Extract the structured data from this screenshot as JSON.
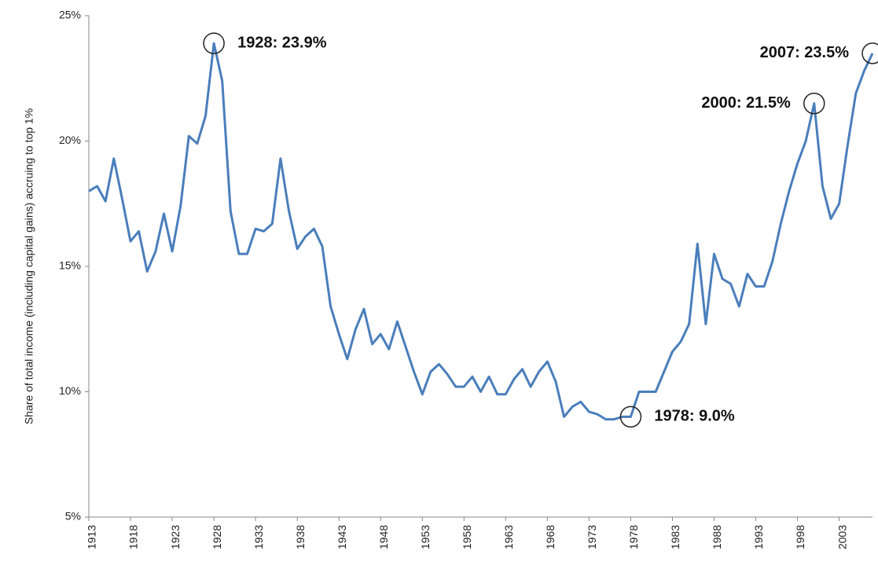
{
  "chart_data": {
    "type": "line",
    "y_label": "Share of total income (including capital gains) accruing to top 1%",
    "x": [
      1913,
      1914,
      1915,
      1916,
      1917,
      1918,
      1919,
      1920,
      1921,
      1922,
      1923,
      1924,
      1925,
      1926,
      1927,
      1928,
      1929,
      1930,
      1931,
      1932,
      1933,
      1934,
      1935,
      1936,
      1937,
      1938,
      1939,
      1940,
      1941,
      1942,
      1943,
      1944,
      1945,
      1946,
      1947,
      1948,
      1949,
      1950,
      1951,
      1952,
      1953,
      1954,
      1955,
      1956,
      1957,
      1958,
      1959,
      1960,
      1961,
      1962,
      1963,
      1964,
      1965,
      1966,
      1967,
      1968,
      1969,
      1970,
      1971,
      1972,
      1973,
      1974,
      1975,
      1976,
      1977,
      1978,
      1979,
      1980,
      1981,
      1982,
      1983,
      1984,
      1985,
      1986,
      1987,
      1988,
      1989,
      1990,
      1991,
      1992,
      1993,
      1994,
      1995,
      1996,
      1997,
      1998,
      1999,
      2000,
      2001,
      2002,
      2003,
      2004,
      2005,
      2006,
      2007
    ],
    "series": [
      {
        "color": "#4a7ebb",
        "values": [
          18.0,
          18.2,
          17.6,
          19.3,
          17.7,
          16.0,
          16.4,
          14.8,
          15.6,
          17.1,
          15.6,
          17.4,
          20.2,
          19.9,
          21.0,
          23.9,
          22.4,
          17.2,
          15.5,
          15.5,
          16.5,
          16.4,
          16.7,
          19.3,
          17.2,
          15.7,
          16.2,
          16.5,
          15.8,
          13.4,
          12.3,
          11.3,
          12.5,
          13.3,
          11.9,
          12.3,
          11.7,
          12.8,
          11.8,
          10.8,
          9.9,
          10.8,
          11.1,
          10.7,
          10.2,
          10.2,
          10.6,
          10.0,
          10.6,
          9.9,
          9.9,
          10.5,
          10.9,
          10.2,
          10.8,
          11.2,
          10.4,
          9.0,
          9.4,
          9.6,
          9.2,
          9.1,
          8.9,
          8.9,
          9.0,
          9.0,
          10.0,
          10.0,
          10.0,
          10.8,
          11.6,
          12.0,
          12.7,
          15.9,
          12.7,
          15.5,
          14.5,
          14.3,
          13.4,
          14.7,
          14.2,
          14.2,
          15.2,
          16.7,
          18.0,
          19.1,
          20.0,
          21.5,
          18.2,
          16.9,
          17.5,
          19.8,
          21.9,
          22.8,
          23.5
        ]
      }
    ],
    "xlim": [
      1913,
      2007
    ],
    "xticks": [
      1913,
      1918,
      1923,
      1928,
      1933,
      1938,
      1943,
      1948,
      1953,
      1958,
      1963,
      1968,
      1973,
      1978,
      1983,
      1988,
      1993,
      1998,
      2003
    ],
    "ylim": [
      5,
      25
    ],
    "yticks": [
      {
        "value": 5,
        "label": "5%"
      },
      {
        "value": 10,
        "label": "10%"
      },
      {
        "value": 15,
        "label": "15%"
      },
      {
        "value": 20,
        "label": "20%"
      },
      {
        "value": 25,
        "label": "25%"
      }
    ],
    "annotations": [
      {
        "label": "1928: 23.9%",
        "x": 1928,
        "y": 23.9,
        "side": "right"
      },
      {
        "label": "1978: 9.0%",
        "x": 1978,
        "y": 9.0,
        "side": "right"
      },
      {
        "label": "2000: 21.5%",
        "x": 2000,
        "y": 21.5,
        "side": "left"
      },
      {
        "label": "2007: 23.5%",
        "x": 2007,
        "y": 23.5,
        "side": "left"
      }
    ]
  }
}
